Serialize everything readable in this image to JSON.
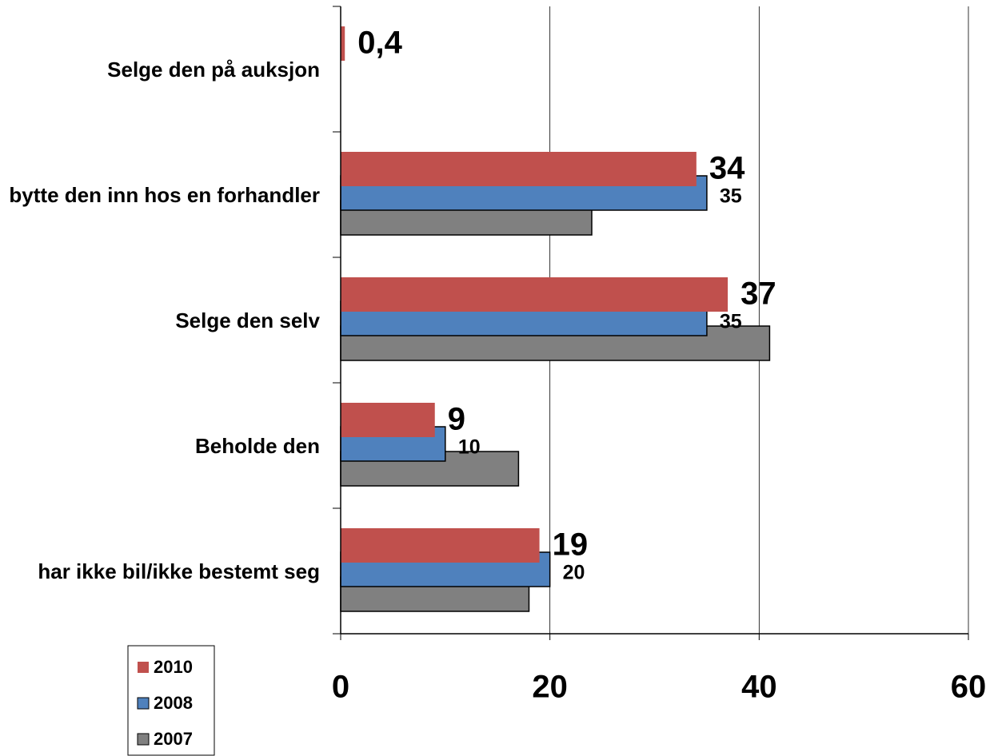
{
  "chart_data": {
    "type": "bar",
    "orientation": "horizontal",
    "categories": [
      "Selge den på auksjon",
      "bytte den inn hos en forhandler",
      "Selge den selv",
      "Beholde den",
      "har ikke bil/ikke bestemt seg"
    ],
    "series": [
      {
        "name": "2010",
        "color": "#c0504d",
        "values": [
          0.4,
          34,
          37,
          9,
          19
        ],
        "value_labels": [
          "0,4",
          "34",
          "37",
          "9",
          "19"
        ]
      },
      {
        "name": "2008",
        "color": "#4f81bd",
        "values": [
          null,
          35,
          35,
          10,
          20
        ],
        "value_labels": [
          null,
          "35",
          "35",
          "10",
          "20"
        ]
      },
      {
        "name": "2007",
        "color": "#808080",
        "values": [
          null,
          24,
          41,
          17,
          18
        ]
      }
    ],
    "xlim": [
      0,
      60
    ],
    "xticks": [
      0,
      20,
      40,
      60
    ],
    "grid": true,
    "legend": "bottom-left"
  }
}
